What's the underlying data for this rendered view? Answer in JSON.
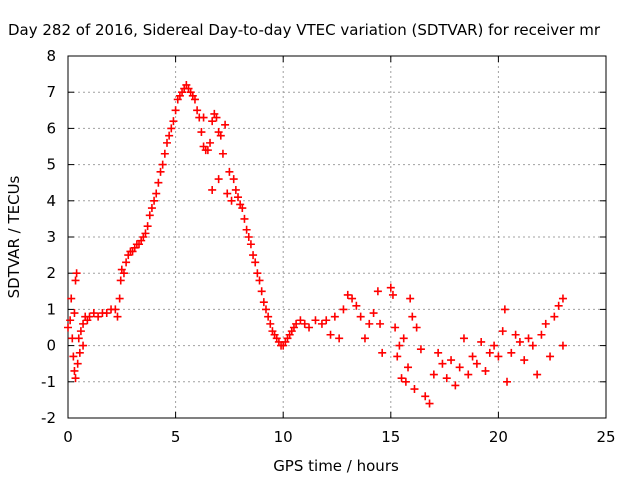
{
  "chart_data": {
    "type": "scatter",
    "title": "Day 282 of 2016, Sidereal Day-to-day VTEC variation (SDTVAR) for receiver mr",
    "xlabel": "GPS time / hours",
    "ylabel": "SDTVAR / TECUs",
    "xlim": [
      0,
      25
    ],
    "ylim": [
      -2,
      8
    ],
    "xticks": [
      "0",
      "5",
      "10",
      "15",
      "20",
      "25"
    ],
    "yticks": [
      "-2",
      "-1",
      "0",
      "1",
      "2",
      "3",
      "4",
      "5",
      "6",
      "7",
      "8"
    ],
    "grid": true,
    "marker": "+",
    "series": [
      {
        "color": "#ff0000",
        "points": [
          [
            0.0,
            0.5
          ],
          [
            0.1,
            0.7
          ],
          [
            0.15,
            1.3
          ],
          [
            0.2,
            0.2
          ],
          [
            0.25,
            -0.3
          ],
          [
            0.3,
            0.9
          ],
          [
            0.3,
            -0.7
          ],
          [
            0.35,
            1.8
          ],
          [
            0.35,
            -0.9
          ],
          [
            0.4,
            2.0
          ],
          [
            0.45,
            -0.5
          ],
          [
            0.5,
            0.2
          ],
          [
            0.55,
            -0.2
          ],
          [
            0.6,
            0.4
          ],
          [
            0.7,
            0.0
          ],
          [
            0.7,
            0.6
          ],
          [
            0.8,
            0.8
          ],
          [
            0.9,
            0.7
          ],
          [
            1.0,
            0.8
          ],
          [
            1.2,
            0.9
          ],
          [
            1.4,
            0.8
          ],
          [
            1.6,
            0.9
          ],
          [
            1.8,
            0.9
          ],
          [
            2.0,
            1.0
          ],
          [
            2.2,
            1.0
          ],
          [
            2.3,
            0.8
          ],
          [
            2.4,
            1.3
          ],
          [
            2.45,
            1.8
          ],
          [
            2.5,
            2.1
          ],
          [
            2.6,
            2.0
          ],
          [
            2.7,
            2.3
          ],
          [
            2.8,
            2.5
          ],
          [
            2.9,
            2.6
          ],
          [
            3.0,
            2.6
          ],
          [
            3.1,
            2.7
          ],
          [
            3.2,
            2.8
          ],
          [
            3.3,
            2.8
          ],
          [
            3.4,
            2.9
          ],
          [
            3.5,
            3.0
          ],
          [
            3.6,
            3.1
          ],
          [
            3.7,
            3.3
          ],
          [
            3.8,
            3.6
          ],
          [
            3.9,
            3.8
          ],
          [
            4.0,
            4.0
          ],
          [
            4.1,
            4.2
          ],
          [
            4.2,
            4.5
          ],
          [
            4.3,
            4.8
          ],
          [
            4.4,
            5.0
          ],
          [
            4.5,
            5.3
          ],
          [
            4.6,
            5.6
          ],
          [
            4.7,
            5.8
          ],
          [
            4.8,
            6.0
          ],
          [
            4.9,
            6.2
          ],
          [
            5.0,
            6.5
          ],
          [
            5.1,
            6.8
          ],
          [
            5.2,
            6.9
          ],
          [
            5.3,
            7.0
          ],
          [
            5.4,
            7.1
          ],
          [
            5.5,
            7.2
          ],
          [
            5.6,
            7.1
          ],
          [
            5.7,
            7.0
          ],
          [
            5.8,
            6.9
          ],
          [
            5.9,
            6.8
          ],
          [
            6.0,
            6.5
          ],
          [
            6.1,
            6.3
          ],
          [
            6.2,
            5.9
          ],
          [
            6.3,
            5.5
          ],
          [
            6.3,
            6.3
          ],
          [
            6.4,
            5.4
          ],
          [
            6.5,
            5.4
          ],
          [
            6.6,
            5.6
          ],
          [
            6.7,
            4.3
          ],
          [
            6.7,
            6.2
          ],
          [
            6.8,
            6.4
          ],
          [
            6.9,
            6.3
          ],
          [
            7.0,
            4.6
          ],
          [
            7.0,
            5.9
          ],
          [
            7.1,
            5.8
          ],
          [
            7.2,
            5.3
          ],
          [
            7.3,
            6.1
          ],
          [
            7.4,
            4.2
          ],
          [
            7.5,
            4.8
          ],
          [
            7.6,
            4.0
          ],
          [
            7.7,
            4.6
          ],
          [
            7.8,
            4.3
          ],
          [
            7.9,
            4.1
          ],
          [
            8.0,
            3.9
          ],
          [
            8.1,
            3.8
          ],
          [
            8.2,
            3.5
          ],
          [
            8.3,
            3.2
          ],
          [
            8.4,
            3.0
          ],
          [
            8.5,
            2.8
          ],
          [
            8.6,
            2.5
          ],
          [
            8.7,
            2.3
          ],
          [
            8.8,
            2.0
          ],
          [
            8.9,
            1.8
          ],
          [
            9.0,
            1.5
          ],
          [
            9.1,
            1.2
          ],
          [
            9.2,
            1.0
          ],
          [
            9.3,
            0.8
          ],
          [
            9.4,
            0.6
          ],
          [
            9.5,
            0.4
          ],
          [
            9.6,
            0.3
          ],
          [
            9.7,
            0.2
          ],
          [
            9.8,
            0.1
          ],
          [
            9.9,
            0.0
          ],
          [
            10.0,
            0.0
          ],
          [
            10.1,
            0.1
          ],
          [
            10.2,
            0.2
          ],
          [
            10.3,
            0.3
          ],
          [
            10.4,
            0.4
          ],
          [
            10.5,
            0.5
          ],
          [
            10.6,
            0.6
          ],
          [
            10.8,
            0.7
          ],
          [
            11.0,
            0.6
          ],
          [
            11.2,
            0.5
          ],
          [
            11.5,
            0.7
          ],
          [
            11.8,
            0.6
          ],
          [
            12.0,
            0.7
          ],
          [
            12.2,
            0.3
          ],
          [
            12.4,
            0.8
          ],
          [
            12.6,
            0.2
          ],
          [
            12.8,
            1.0
          ],
          [
            13.0,
            1.4
          ],
          [
            13.2,
            1.3
          ],
          [
            13.4,
            1.1
          ],
          [
            13.6,
            0.8
          ],
          [
            13.8,
            0.2
          ],
          [
            14.0,
            0.6
          ],
          [
            14.2,
            0.9
          ],
          [
            14.4,
            1.5
          ],
          [
            14.5,
            0.6
          ],
          [
            14.6,
            -0.2
          ],
          [
            15.0,
            1.6
          ],
          [
            15.1,
            1.4
          ],
          [
            15.2,
            0.5
          ],
          [
            15.3,
            -0.3
          ],
          [
            15.4,
            0.0
          ],
          [
            15.5,
            -0.9
          ],
          [
            15.6,
            0.2
          ],
          [
            15.7,
            -1.0
          ],
          [
            15.8,
            -0.6
          ],
          [
            15.9,
            1.3
          ],
          [
            16.0,
            0.8
          ],
          [
            16.1,
            -1.2
          ],
          [
            16.2,
            0.5
          ],
          [
            16.4,
            -0.1
          ],
          [
            16.6,
            -1.4
          ],
          [
            16.8,
            -1.6
          ],
          [
            17.0,
            -0.8
          ],
          [
            17.2,
            -0.2
          ],
          [
            17.4,
            -0.5
          ],
          [
            17.6,
            -0.9
          ],
          [
            17.8,
            -0.4
          ],
          [
            18.0,
            -1.1
          ],
          [
            18.2,
            -0.6
          ],
          [
            18.4,
            0.2
          ],
          [
            18.6,
            -0.8
          ],
          [
            18.8,
            -0.3
          ],
          [
            19.0,
            -0.5
          ],
          [
            19.2,
            0.1
          ],
          [
            19.4,
            -0.7
          ],
          [
            19.6,
            -0.2
          ],
          [
            19.8,
            0.0
          ],
          [
            20.0,
            -0.3
          ],
          [
            20.2,
            0.4
          ],
          [
            20.3,
            1.0
          ],
          [
            20.4,
            -1.0
          ],
          [
            20.6,
            -0.2
          ],
          [
            20.8,
            0.3
          ],
          [
            21.0,
            0.1
          ],
          [
            21.2,
            -0.4
          ],
          [
            21.4,
            0.2
          ],
          [
            21.6,
            0.0
          ],
          [
            21.8,
            -0.8
          ],
          [
            22.0,
            0.3
          ],
          [
            22.2,
            0.6
          ],
          [
            22.4,
            -0.3
          ],
          [
            22.6,
            0.8
          ],
          [
            22.8,
            1.1
          ],
          [
            23.0,
            1.3
          ],
          [
            23.0,
            0.0
          ]
        ]
      }
    ]
  }
}
